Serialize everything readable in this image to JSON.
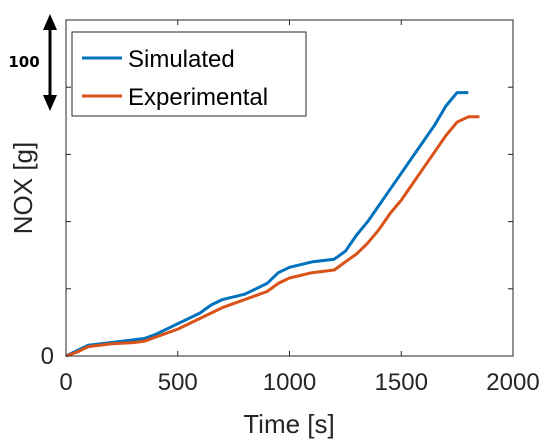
{
  "chart_data": {
    "type": "line",
    "title": "",
    "xlabel": "Time [s]",
    "ylabel": "NOX [g]",
    "xlim": [
      0,
      2000
    ],
    "ylim": [
      0,
      125
    ],
    "xticks": [
      0,
      500,
      1000,
      1500,
      2000
    ],
    "x_tick_labels": [
      "0",
      "500",
      "1000",
      "1500",
      "2000"
    ],
    "yticks": [
      0,
      25,
      50,
      75,
      100,
      125
    ],
    "y_tick_labels": [
      "0",
      "",
      "",
      "",
      "",
      ""
    ],
    "grid": false,
    "legend_position": "top-left",
    "series": [
      {
        "name": "Simulated",
        "color": "#0072BD",
        "x": [
          0,
          50,
          100,
          200,
          300,
          350,
          400,
          500,
          600,
          650,
          700,
          800,
          900,
          950,
          1000,
          1100,
          1200,
          1250,
          1300,
          1350,
          1400,
          1450,
          1500,
          1550,
          1600,
          1650,
          1700,
          1750,
          1800
        ],
        "y": [
          0,
          2,
          4,
          5,
          6,
          6.5,
          8,
          12,
          16,
          19,
          21,
          23,
          27,
          31,
          33,
          35,
          36,
          39,
          45,
          50,
          56,
          62,
          68,
          74,
          80,
          86,
          93,
          98,
          98
        ]
      },
      {
        "name": "Experimental",
        "color": "#D95319",
        "x": [
          0,
          50,
          100,
          200,
          300,
          350,
          400,
          500,
          600,
          650,
          700,
          800,
          900,
          950,
          1000,
          1100,
          1200,
          1250,
          1300,
          1350,
          1400,
          1450,
          1500,
          1550,
          1600,
          1650,
          1700,
          1750,
          1800,
          1850
        ],
        "y": [
          0,
          1.5,
          3.5,
          4.5,
          5,
          5.5,
          7,
          10,
          14,
          16,
          18,
          21,
          24,
          27,
          29,
          31,
          32,
          35,
          38,
          42,
          47,
          53,
          58,
          64,
          70,
          76,
          82,
          87,
          89,
          89
        ]
      }
    ],
    "annotations": [
      {
        "text": "100",
        "type": "double-arrow-label"
      }
    ]
  }
}
